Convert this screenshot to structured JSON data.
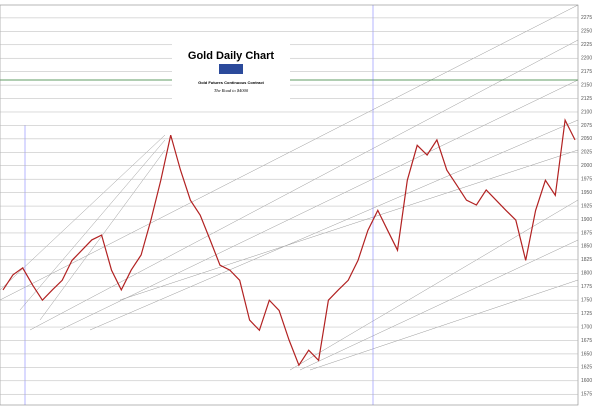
{
  "chart_data": {
    "type": "line",
    "title": "Gold Daily Chart",
    "subtitle": "Gold Futures Continuous Contract",
    "annotation": "The Road to $4000",
    "categories": [
      null,
      null,
      null,
      null,
      null,
      null,
      null,
      null,
      null,
      null,
      null,
      null,
      null,
      null,
      null,
      null,
      null,
      null,
      null,
      null,
      null,
      null,
      null,
      null,
      null,
      null,
      null,
      null,
      null,
      null,
      null,
      null,
      null,
      null,
      null,
      null,
      null,
      null,
      null,
      null,
      null,
      null,
      null,
      null,
      null,
      null,
      null,
      null,
      null,
      null,
      null,
      null,
      null,
      null,
      null,
      null,
      null,
      null,
      null
    ],
    "series": [
      {
        "name": "Gold",
        "color": "#b22222",
        "values": [
          1769,
          1797,
          1810,
          1778,
          1750,
          1769,
          1787,
          1824,
          1843,
          1862,
          1871,
          1806,
          1769,
          1806,
          1834,
          1899,
          1973,
          2057,
          1992,
          1936,
          1908,
          1862,
          1815,
          1806,
          1787,
          1713,
          1694,
          1750,
          1731,
          1676,
          1629,
          1657,
          1638,
          1750,
          1769,
          1787,
          1824,
          1880,
          1917,
          1880,
          1843,
          1973,
          2038,
          2020,
          2048,
          1992,
          1964,
          1936,
          1927,
          1955,
          1936,
          1917,
          1899,
          1824,
          1917,
          1973,
          1945,
          2085,
          2048
        ]
      }
    ],
    "ylim": [
      1555,
      2299
    ],
    "yticks": [
      1575,
      1600,
      1625,
      1650,
      1675,
      1700,
      1725,
      1750,
      1775,
      1800,
      1825,
      1850,
      1875,
      1900,
      1925,
      1950,
      1975,
      2000,
      2025,
      2050,
      2075,
      2100,
      2125,
      2150,
      2175,
      2200,
      2225,
      2250,
      2275
    ],
    "grid": true
  }
}
